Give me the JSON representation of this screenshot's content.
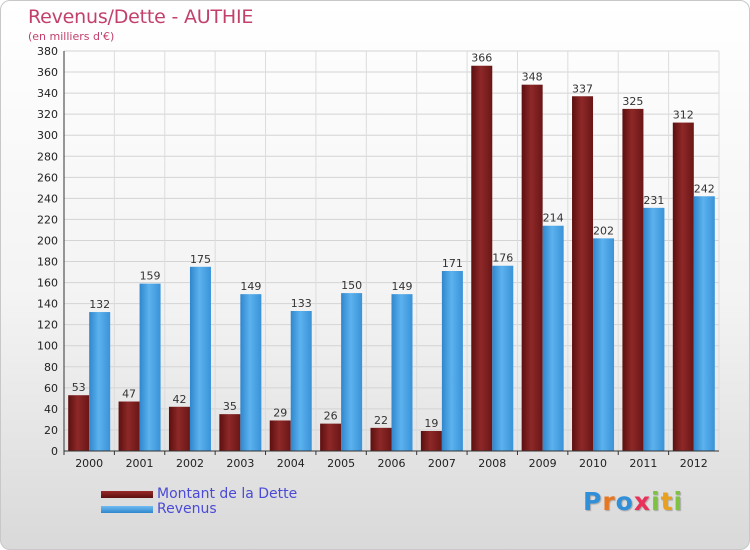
{
  "title": "Revenus/Dette - AUTHIE",
  "subtitle": "(en milliers d'€)",
  "legend": [
    {
      "label": "Montant de la Dette",
      "color": "#7b1c1c"
    },
    {
      "label": "Revenus",
      "color": "#3f9be0"
    }
  ],
  "logo": {
    "letters": [
      "P",
      "r",
      "o",
      "x",
      "i",
      "t",
      "i"
    ],
    "colors": [
      "#2f8fd8",
      "#e87722",
      "#2f8fd8",
      "#e8305a",
      "#7fc241",
      "#e8a020",
      "#7fc241"
    ]
  },
  "chart_data": {
    "type": "bar",
    "categories": [
      "2000",
      "2001",
      "2002",
      "2003",
      "2004",
      "2005",
      "2006",
      "2007",
      "2008",
      "2009",
      "2010",
      "2011",
      "2012"
    ],
    "series": [
      {
        "name": "Montant de la Dette",
        "color": "#7b1c1c",
        "values": [
          53,
          47,
          42,
          35,
          29,
          26,
          22,
          19,
          366,
          348,
          337,
          325,
          312
        ]
      },
      {
        "name": "Revenus",
        "color": "#3f9be0",
        "values": [
          132,
          159,
          175,
          149,
          133,
          150,
          149,
          171,
          176,
          214,
          202,
          231,
          242
        ]
      }
    ],
    "ylim": [
      0,
      380
    ],
    "yticks": [
      0,
      20,
      40,
      60,
      80,
      100,
      120,
      140,
      160,
      180,
      200,
      220,
      240,
      260,
      280,
      300,
      320,
      340,
      360,
      380
    ],
    "grid": true,
    "title": "Revenus/Dette - AUTHIE",
    "xlabel": "",
    "ylabel": "(en milliers d'€)"
  }
}
